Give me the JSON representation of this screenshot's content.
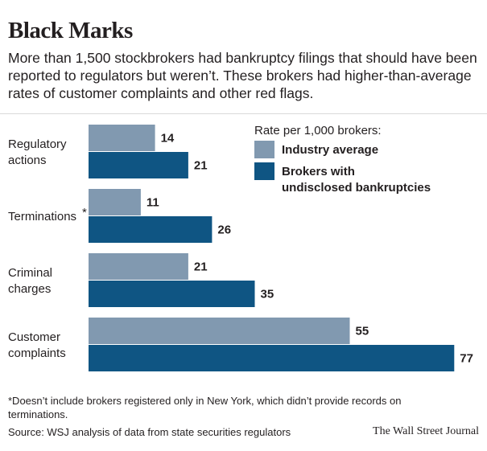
{
  "header": {
    "title": "Black Marks",
    "subtitle": "More than 1,500 stockbrokers had bankruptcy filings that should have been reported to regulators but weren’t. These brokers had higher-than-average rates of customer complaints and other red flags."
  },
  "legend": {
    "title": "Rate per 1,000 brokers:",
    "items": [
      {
        "label_lines": [
          "Industry average"
        ],
        "color": "#8199b0"
      },
      {
        "label_lines": [
          "Brokers with",
          "undisclosed bankruptcies"
        ],
        "color": "#0f5583"
      }
    ]
  },
  "chart_data": {
    "type": "bar",
    "orientation": "horizontal",
    "categories": [
      {
        "lines": [
          "Regulatory",
          "actions"
        ],
        "footnote_mark": ""
      },
      {
        "lines": [
          "Terminations"
        ],
        "footnote_mark": "*"
      },
      {
        "lines": [
          "Criminal",
          "charges"
        ],
        "footnote_mark": ""
      },
      {
        "lines": [
          "Customer",
          "complaints"
        ],
        "footnote_mark": ""
      }
    ],
    "series": [
      {
        "name": "Industry average",
        "color": "#8199b0",
        "values": [
          14,
          11,
          21,
          55
        ]
      },
      {
        "name": "Brokers with undisclosed bankruptcies",
        "color": "#0f5583",
        "values": [
          21,
          26,
          35,
          77
        ]
      }
    ],
    "xlim": [
      0,
      77
    ],
    "grid": false
  },
  "footer": {
    "note": "*Doesn’t include brokers registered only in New York, which didn’t provide records on terminations.",
    "source": "Source: WSJ analysis of data from state securities regulators",
    "credit": "The Wall Street Journal"
  }
}
